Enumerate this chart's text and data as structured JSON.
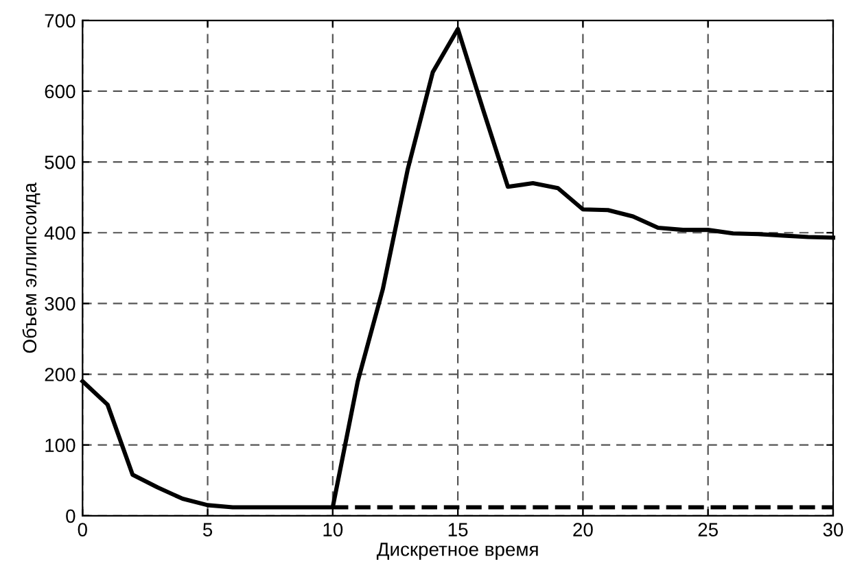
{
  "chart_data": {
    "type": "line",
    "xlabel": "Дискретное время",
    "ylabel": "Объем эллипсоида",
    "xlim": [
      0,
      30
    ],
    "ylim": [
      0,
      700
    ],
    "xticks": [
      0,
      5,
      10,
      15,
      20,
      25,
      30
    ],
    "yticks": [
      0,
      100,
      200,
      300,
      400,
      500,
      600,
      700
    ],
    "grid": true,
    "marker": "none",
    "series": [
      {
        "color": "#000000",
        "line_style": "solid",
        "x": [
          0,
          1,
          2,
          3,
          4,
          5,
          6,
          7,
          8,
          9,
          10,
          11,
          12,
          13,
          14,
          15,
          16,
          17,
          18,
          19,
          20,
          21,
          22,
          23,
          24,
          25,
          26,
          27,
          28,
          29,
          30
        ],
        "values": [
          190,
          157,
          58,
          40,
          24,
          15,
          12,
          12,
          12,
          12,
          12,
          190,
          320,
          490,
          627,
          688,
          575,
          465,
          470,
          463,
          433,
          432,
          423,
          407,
          404,
          404,
          399,
          398,
          396,
          394,
          393
        ]
      },
      {
        "color": "#000000",
        "line_style": "dashed",
        "x": [
          10,
          15,
          20,
          25,
          30
        ],
        "values": [
          12,
          12,
          12,
          12,
          12
        ]
      }
    ]
  }
}
